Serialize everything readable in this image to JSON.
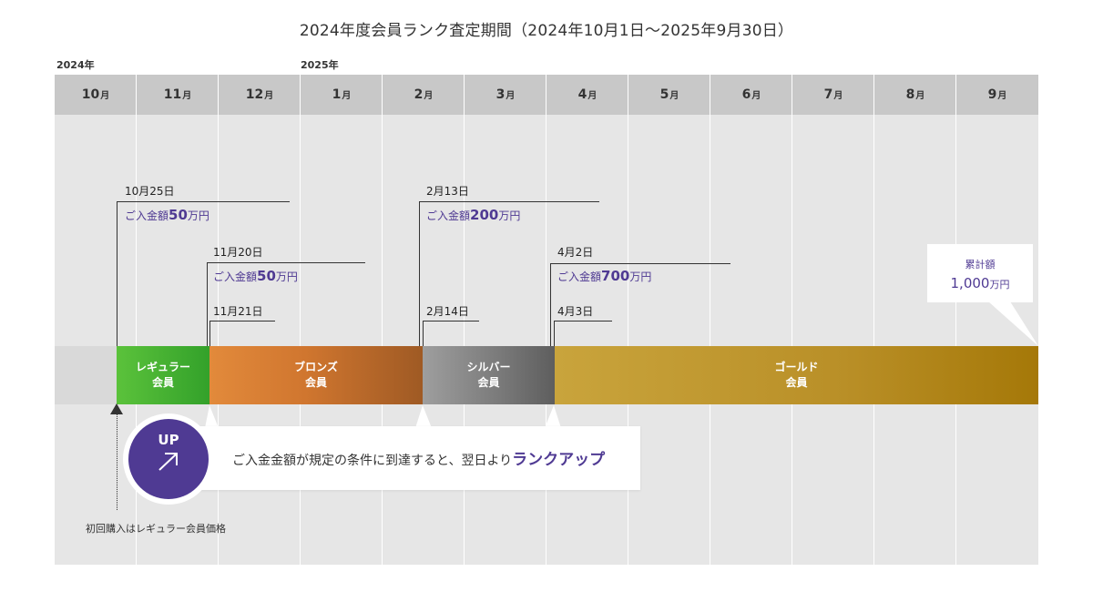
{
  "title": "2024年度会員ランク査定期間（2024年10月1日〜2025年9月30日）",
  "years": {
    "start": "2024年",
    "next": "2025年"
  },
  "months": [
    {
      "num": "10",
      "unit": "月"
    },
    {
      "num": "11",
      "unit": "月"
    },
    {
      "num": "12",
      "unit": "月"
    },
    {
      "num": "1",
      "unit": "月"
    },
    {
      "num": "2",
      "unit": "月"
    },
    {
      "num": "3",
      "unit": "月"
    },
    {
      "num": "4",
      "unit": "月"
    },
    {
      "num": "5",
      "unit": "月"
    },
    {
      "num": "6",
      "unit": "月"
    },
    {
      "num": "7",
      "unit": "月"
    },
    {
      "num": "8",
      "unit": "月"
    },
    {
      "num": "9",
      "unit": "月"
    }
  ],
  "ranks": {
    "regular": {
      "line1": "レギュラー",
      "line2": "会員"
    },
    "bronze": {
      "line1": "ブロンズ",
      "line2": "会員"
    },
    "silver": {
      "line1": "シルバー",
      "line2": "会員"
    },
    "gold": {
      "line1": "ゴールド",
      "line2": "会員"
    }
  },
  "events": {
    "e1": {
      "date": "10月25日",
      "prefix": "ご入金額",
      "amount": "50",
      "unit": "万円"
    },
    "e2": {
      "date": "11月20日",
      "prefix": "ご入金額",
      "amount": "50",
      "unit": "万円"
    },
    "e2b": {
      "date": "11月21日"
    },
    "e3": {
      "date": "2月13日",
      "prefix": "ご入金額",
      "amount": "200",
      "unit": "万円"
    },
    "e3b": {
      "date": "2月14日"
    },
    "e4": {
      "date": "4月2日",
      "prefix": "ご入金額",
      "amount": "700",
      "unit": "万円"
    },
    "e4b": {
      "date": "4月3日"
    }
  },
  "total": {
    "label": "累計額",
    "amount": "1,000",
    "unit": "万円"
  },
  "first_purchase_note": "初回購入はレギュラー会員価格",
  "callout": {
    "badge": "UP",
    "arrow": "↗",
    "text": "ご入金金額が規定の条件に到達すると、翌日より",
    "emphasis": "ランクアップ"
  },
  "colors": {
    "accent": "#4f3a93",
    "regular": "#45b133",
    "bronze": "#d0762f",
    "silver": "#7c7c7c",
    "gold": "#b98f27"
  }
}
